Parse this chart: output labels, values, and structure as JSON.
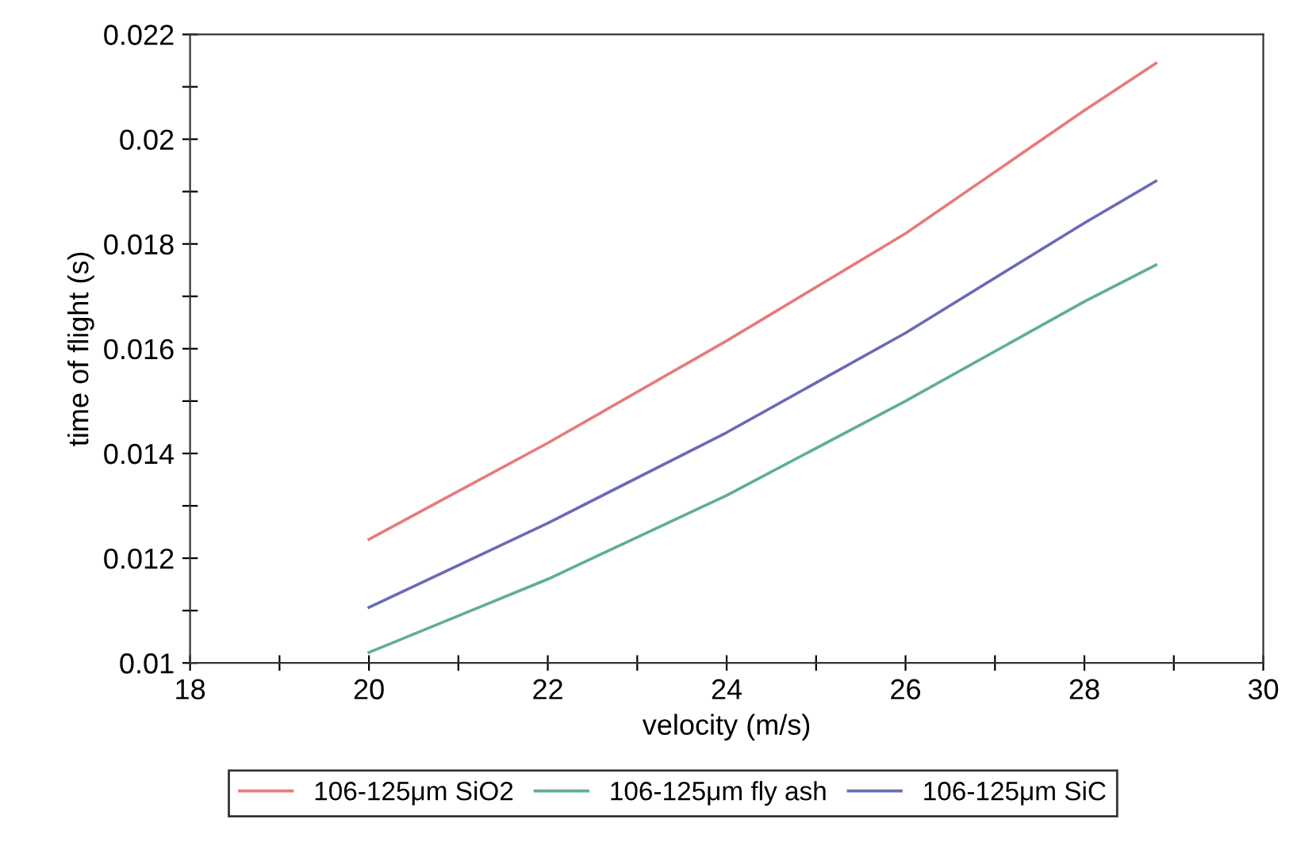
{
  "chart_data": {
    "type": "line",
    "xlabel": "velocity (m/s)",
    "ylabel": "time of flight (s)",
    "xlim": [
      18,
      30
    ],
    "ylim": [
      0.01,
      0.022
    ],
    "xticks": [
      18,
      {
        "value": 19,
        "label": null
      },
      20,
      {
        "value": 21,
        "label": null
      },
      22,
      {
        "value": 23,
        "label": null
      },
      24,
      {
        "value": 25,
        "label": null
      },
      26,
      {
        "value": 27,
        "label": null
      },
      28,
      {
        "value": 29,
        "label": null
      },
      30
    ],
    "yticks": [
      0.01,
      {
        "value": 0.011,
        "label": null
      },
      0.012,
      {
        "value": 0.013,
        "label": null
      },
      0.014,
      {
        "value": 0.015,
        "label": null
      },
      0.016,
      {
        "value": 0.017,
        "label": null
      },
      0.018,
      {
        "value": 0.019,
        "label": null
      },
      0.02,
      {
        "value": 0.021,
        "label": null
      },
      0.022
    ],
    "x": [
      20,
      22,
      24,
      26,
      28,
      28.8
    ],
    "series": [
      {
        "name": "106-125μm SiO2",
        "color": "#e87a7a",
        "values": [
          0.01236,
          0.0142,
          0.01615,
          0.0182,
          0.02055,
          0.02145
        ]
      },
      {
        "name": "106-125μm fly ash",
        "color": "#5fae94",
        "values": [
          0.0102,
          0.0116,
          0.0132,
          0.015,
          0.0169,
          0.0176
        ]
      },
      {
        "name": "106-125μm SiC",
        "color": "#6a6ab8",
        "values": [
          0.01106,
          0.01267,
          0.0144,
          0.0163,
          0.0184,
          0.0192
        ]
      }
    ],
    "grid": false,
    "legend": "bottom",
    "marker": "none",
    "line_style": "solid"
  }
}
